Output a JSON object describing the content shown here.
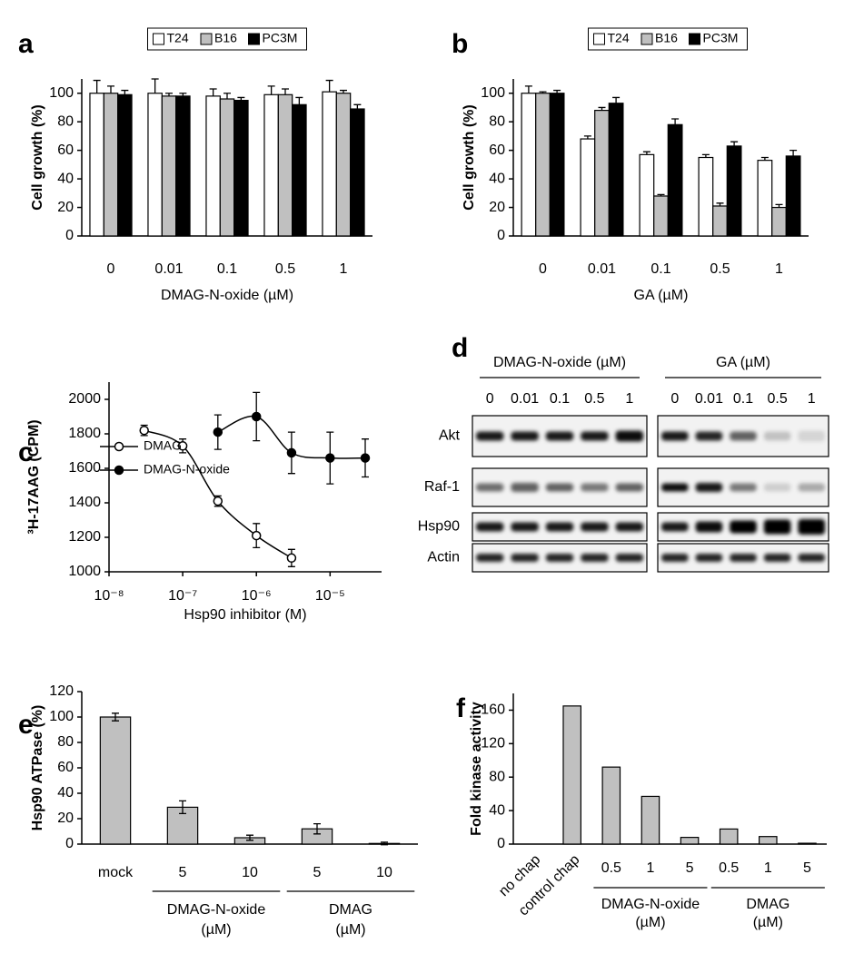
{
  "chart_data": [
    {
      "panel": "a",
      "type": "bar",
      "ylabel": "Cell growth (%)",
      "xlabel": "DMAG-N-oxide (µM)",
      "categories": [
        "0",
        "0.01",
        "0.1",
        "0.5",
        "1"
      ],
      "series": [
        {
          "name": "T24",
          "color": "#ffffff",
          "values": [
            100,
            100,
            98,
            99,
            101
          ],
          "errors": [
            9,
            10,
            5,
            6,
            8
          ]
        },
        {
          "name": "B16",
          "color": "#c0c0c0",
          "values": [
            100,
            98,
            96,
            99,
            100
          ],
          "errors": [
            5,
            2,
            4,
            4,
            2
          ]
        },
        {
          "name": "PC3M",
          "color": "#000000",
          "values": [
            99,
            98,
            95,
            92,
            89
          ],
          "errors": [
            3,
            2,
            2,
            5,
            3
          ]
        }
      ],
      "error_bars": "upper",
      "ylim": [
        0,
        110
      ],
      "yticks": [
        0,
        20,
        40,
        60,
        80,
        100
      ],
      "legend": "top"
    },
    {
      "panel": "b",
      "type": "bar",
      "ylabel": "Cell growth (%)",
      "xlabel": "GA (µM)",
      "categories": [
        "0",
        "0.01",
        "0.1",
        "0.5",
        "1"
      ],
      "series": [
        {
          "name": "T24",
          "color": "#ffffff",
          "values": [
            100,
            68,
            57,
            55,
            53
          ],
          "errors": [
            5,
            2,
            2,
            2,
            2
          ]
        },
        {
          "name": "B16",
          "color": "#c0c0c0",
          "values": [
            100,
            88,
            28,
            21,
            20
          ],
          "errors": [
            1,
            2,
            1,
            2,
            2
          ]
        },
        {
          "name": "PC3M",
          "color": "#000000",
          "values": [
            100,
            93,
            78,
            63,
            56
          ],
          "errors": [
            2,
            4,
            4,
            3,
            4
          ]
        }
      ],
      "error_bars": "upper",
      "ylim": [
        0,
        110
      ],
      "yticks": [
        0,
        20,
        40,
        60,
        80,
        100
      ],
      "legend": "top"
    },
    {
      "panel": "c",
      "type": "line",
      "ylabel": "³H-17AAG (CPM)",
      "xlabel": "Hsp90 inhibitor (M)",
      "log_x": true,
      "series": [
        {
          "name": "DMAG",
          "color": "#000000",
          "marker": "open",
          "x": [
            3e-08,
            1e-07,
            3e-07,
            1e-06,
            3e-06
          ],
          "values": [
            1820,
            1730,
            1410,
            1210,
            1080
          ],
          "errors": [
            30,
            40,
            30,
            70,
            50
          ]
        },
        {
          "name": "DMAG-N-oxide",
          "color": "#000000",
          "marker": "filled",
          "x": [
            3e-07,
            1e-06,
            3e-06,
            1e-05,
            3e-05
          ],
          "values": [
            1810,
            1900,
            1690,
            1660,
            1660
          ],
          "errors": [
            100,
            140,
            120,
            150,
            110
          ]
        }
      ],
      "xlim": [
        1e-08,
        5e-05
      ],
      "xticks": [
        {
          "value": 1e-08,
          "label": "10⁻⁸"
        },
        {
          "value": 1e-07,
          "label": "10⁻⁷"
        },
        {
          "value": 1e-06,
          "label": "10⁻⁶"
        },
        {
          "value": 1e-05,
          "label": "10⁻⁵"
        }
      ],
      "ylim": [
        1000,
        2100
      ],
      "yticks": [
        1000,
        1200,
        1400,
        1600,
        1800,
        2000
      ],
      "legend": "top-left"
    },
    {
      "panel": "d",
      "type": "blot",
      "groups": [
        {
          "title": "DMAG-N-oxide (µM)",
          "lanes": [
            "0",
            "0.01",
            "0.1",
            "0.5",
            "1"
          ]
        },
        {
          "title": "GA (µM)",
          "lanes": [
            "0",
            "0.01",
            "0.1",
            "0.5",
            "1"
          ]
        }
      ],
      "rows": [
        "Akt",
        "Raf-1",
        "Hsp90",
        "Actin"
      ]
    },
    {
      "panel": "e",
      "type": "bar",
      "ylabel": "Hsp90 ATPase (%)",
      "color": "#c0c0c0",
      "categories": [
        "mock",
        "5",
        "10",
        "5",
        "10"
      ],
      "values": [
        100,
        29,
        5,
        12,
        0.5
      ],
      "errors": [
        3,
        5,
        2,
        4,
        1
      ],
      "groups": [
        {
          "label": "DMAG-N-oxide",
          "unit": "(µM)"
        },
        {
          "label": "DMAG",
          "unit": "(µM)"
        }
      ],
      "error_bars": "both",
      "ylim": [
        0,
        120
      ],
      "yticks": [
        0,
        20,
        40,
        60,
        80,
        100,
        120
      ]
    },
    {
      "panel": "f",
      "type": "bar",
      "ylabel": "Fold kinase activity",
      "color": "#c0c0c0",
      "categories": [
        "no chap",
        "control chap",
        "0.5",
        "1",
        "5",
        "0.5",
        "1",
        "5"
      ],
      "values": [
        0,
        165,
        92,
        57,
        8,
        18,
        9,
        1
      ],
      "groups": [
        {
          "label": "DMAG-N-oxide",
          "unit": "(µM)"
        },
        {
          "label": "DMAG",
          "unit": "(µM)"
        }
      ],
      "ylim": [
        0,
        180
      ],
      "yticks": [
        0,
        40,
        80,
        120,
        160
      ]
    }
  ]
}
